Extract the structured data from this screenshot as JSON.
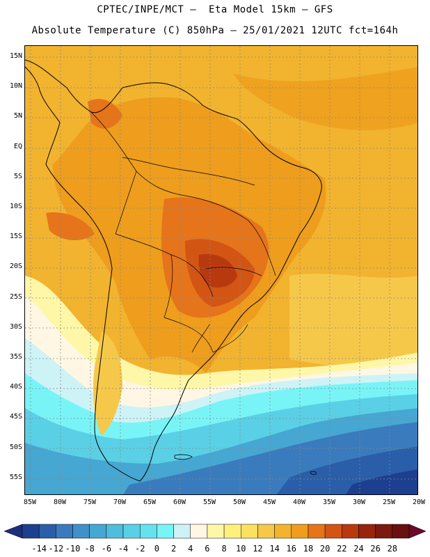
{
  "header": {
    "line1": "CPTEC/INPE/MCT –  Eta Model 15km – GFS",
    "line2": "Absolute Temperature (C) 850hPa – 25/01/2021 12UTC fct=164h"
  },
  "map": {
    "lat_labels": [
      "15N",
      "10N",
      "5N",
      "EQ",
      "5S",
      "10S",
      "15S",
      "20S",
      "25S",
      "30S",
      "35S",
      "40S",
      "45S",
      "50S",
      "55S"
    ],
    "lon_labels": [
      "85W",
      "80W",
      "75W",
      "70W",
      "65W",
      "60W",
      "55W",
      "50W",
      "45W",
      "40W",
      "35W",
      "30W",
      "25W",
      "20W"
    ]
  },
  "colorbar": {
    "labels": [
      "-14",
      "-12",
      "-10",
      "-8",
      "-6",
      "-4",
      "-2",
      "0",
      "2",
      "4",
      "6",
      "8",
      "10",
      "12",
      "14",
      "16",
      "18",
      "20",
      "22",
      "24",
      "26",
      "28"
    ],
    "colors": [
      "#1d3f8f",
      "#2a5ea8",
      "#3a7bbd",
      "#3f91c8",
      "#46a7d2",
      "#50bddc",
      "#5ad0e6",
      "#66e2ef",
      "#78f4f7",
      "#cdf3f6",
      "#fff7e4",
      "#fff7a8",
      "#fff07e",
      "#fce060",
      "#f6c84a",
      "#f2b32e",
      "#ee9d1c",
      "#e6741a",
      "#d25514",
      "#b9390f",
      "#98240c",
      "#7a1a10",
      "#6a1010"
    ]
  }
}
